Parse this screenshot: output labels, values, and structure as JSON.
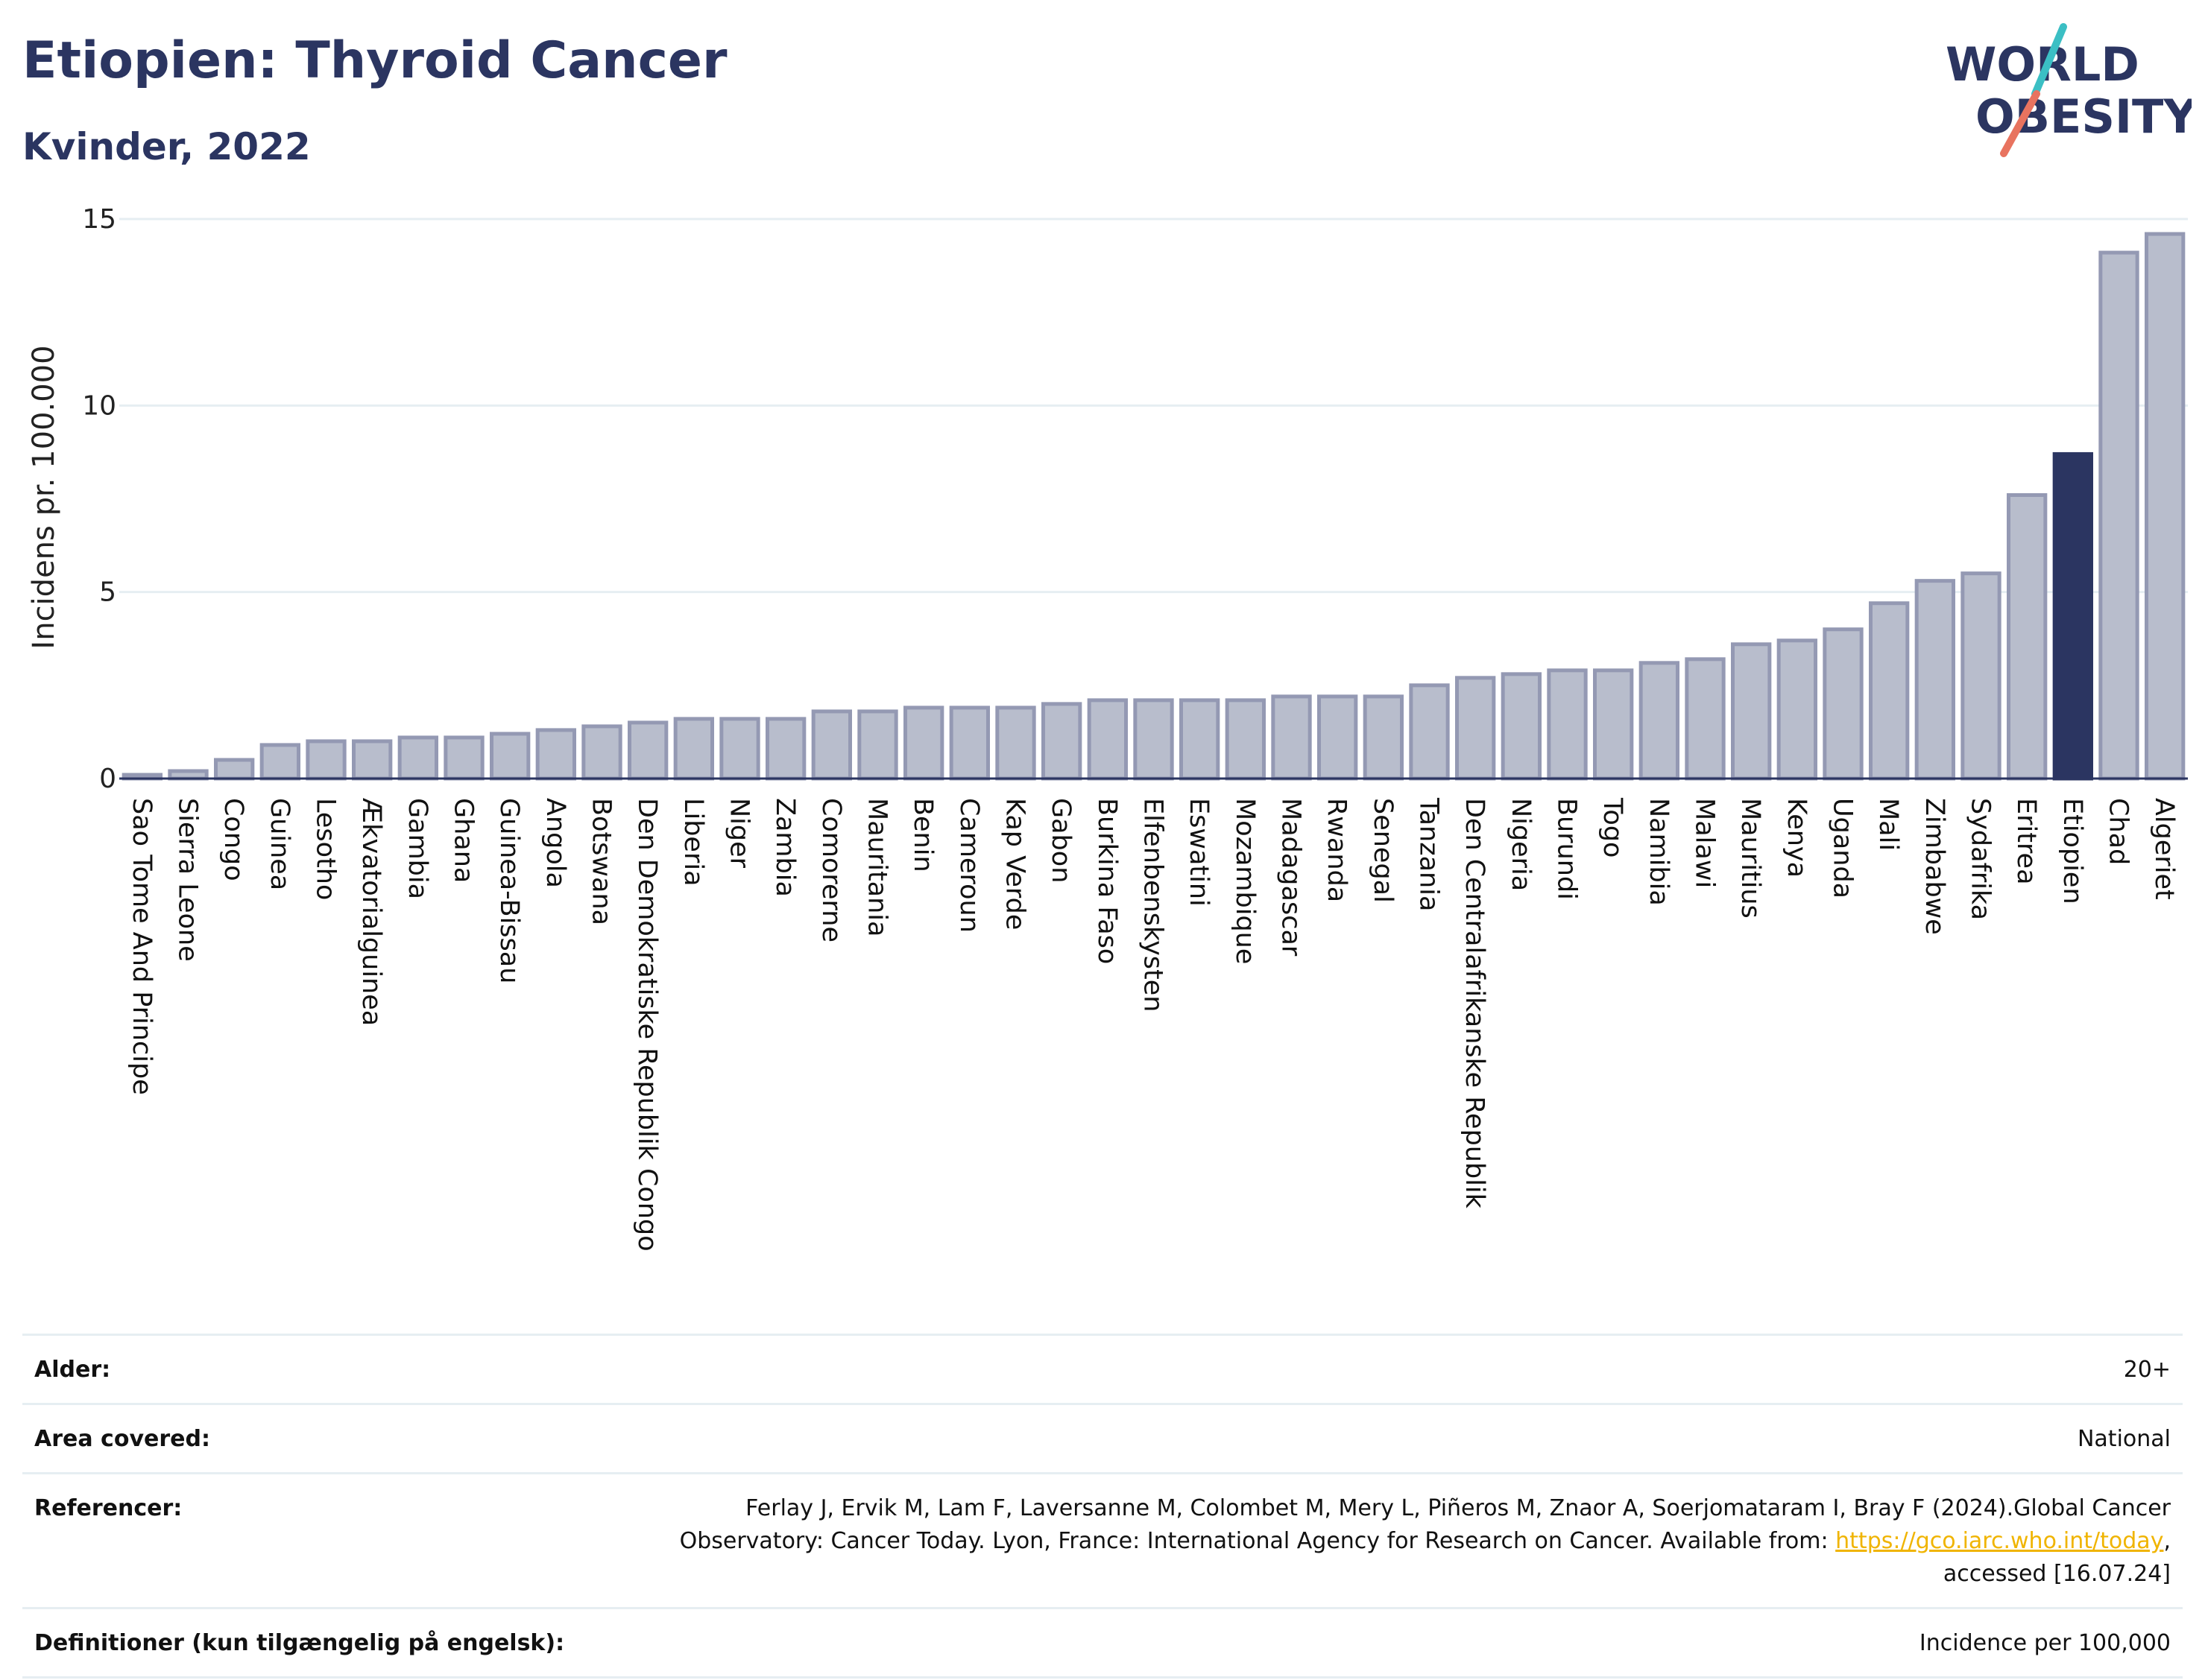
{
  "header": {
    "title": "Etiopien: Thyroid Cancer",
    "subtitle": "Kvinder, 2022"
  },
  "logo": {
    "line1": "WORLD",
    "line2": "OBESITY",
    "colors": {
      "text": "#2b3561",
      "teal": "#3bbfc4",
      "coral": "#e8735f"
    }
  },
  "colors": {
    "bar_default": "#b8bdcc",
    "bar_default_border": "#9499b3",
    "bar_highlight": "#2b3561",
    "grid": "#e6eef2"
  },
  "chart_data": {
    "type": "bar",
    "ylabel": "Incidens pr. 100.000",
    "xlabel": "",
    "ylim": [
      0,
      15
    ],
    "yticks": [
      0,
      5,
      10,
      15
    ],
    "grid": true,
    "highlight": "Etiopien",
    "categories": [
      "Sao Tome And Principe",
      "Sierra Leone",
      "Congo",
      "Guinea",
      "Lesotho",
      "Ækvatorialguinea",
      "Gambia",
      "Ghana",
      "Guinea-Bissau",
      "Angola",
      "Botswana",
      "Den Demokratiske Republik Congo",
      "Liberia",
      "Niger",
      "Zambia",
      "Comorerne",
      "Mauritania",
      "Benin",
      "Cameroun",
      "Kap Verde",
      "Gabon",
      "Burkina Faso",
      "Elfenbenskysten",
      "Eswatini",
      "Mozambique",
      "Madagascar",
      "Rwanda",
      "Senegal",
      "Tanzania",
      "Den Centralafrikanske Republik",
      "Nigeria",
      "Burundi",
      "Togo",
      "Namibia",
      "Malawi",
      "Mauritius",
      "Kenya",
      "Uganda",
      "Mali",
      "Zimbabwe",
      "Sydafrika",
      "Eritrea",
      "Etiopien",
      "Chad",
      "Algeriet"
    ],
    "values": [
      0.1,
      0.2,
      0.5,
      0.9,
      1.0,
      1.0,
      1.1,
      1.1,
      1.2,
      1.3,
      1.4,
      1.5,
      1.6,
      1.6,
      1.6,
      1.8,
      1.8,
      1.9,
      1.9,
      1.9,
      2.0,
      2.1,
      2.1,
      2.1,
      2.1,
      2.2,
      2.2,
      2.2,
      2.5,
      2.7,
      2.8,
      2.9,
      2.9,
      3.1,
      3.2,
      3.6,
      3.7,
      4.0,
      4.7,
      5.3,
      5.5,
      7.6,
      8.7,
      14.1,
      14.6
    ]
  },
  "info": {
    "age_label": "Alder:",
    "age_value": "20+",
    "area_label": "Area covered:",
    "area_value": "National",
    "ref_label": "Referencer:",
    "ref_text_1": "Ferlay J, Ervik M, Lam F, Laversanne M, Colombet M, Mery L, Piñeros M, Znaor A, Soerjomataram I, Bray F (2024).Global Cancer Observatory: Cancer Today. Lyon, France: International Agency for Research on Cancer. Available from: ",
    "ref_link": "https://gco.iarc.who.int/today",
    "ref_text_2": ", accessed [16.07.24]",
    "def_label": "Definitioner (kun tilgængelig på engelsk):",
    "def_value": "Incidence per 100,000"
  }
}
